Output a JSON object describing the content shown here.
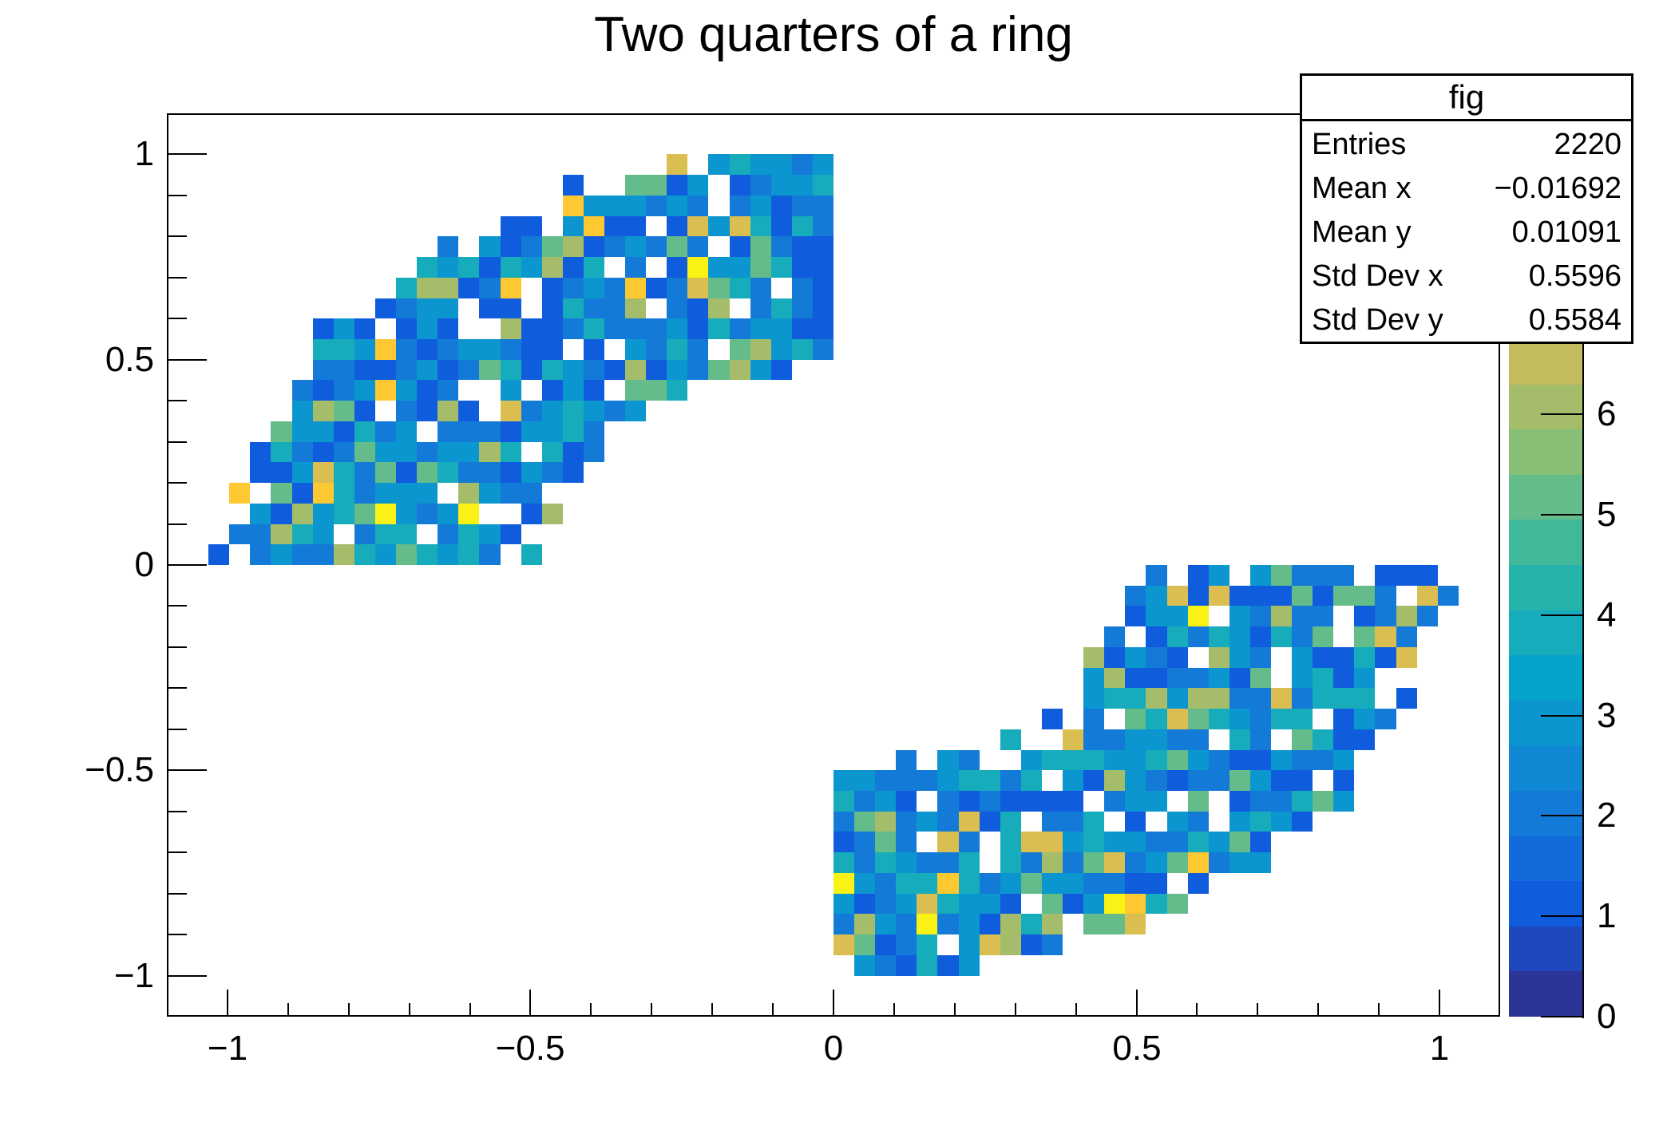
{
  "title": "Two quarters of a ring",
  "stats_box": {
    "title": "fig",
    "rows": [
      {
        "label": "Entries",
        "value": "2220"
      },
      {
        "label": "Mean x",
        "value": "−0.01692"
      },
      {
        "label": "Mean y",
        "value": "0.01091"
      },
      {
        "label": "Std Dev x",
        "value": "0.5596"
      },
      {
        "label": "Std Dev y",
        "value": "0.5584"
      }
    ]
  },
  "chart_data": {
    "type": "heatmap",
    "title": "Two quarters of a ring",
    "xlabel": "",
    "ylabel": "",
    "grid": false,
    "x_axis": {
      "range": [
        -1.1,
        1.1
      ],
      "major_ticks": [
        -1,
        -0.5,
        0,
        0.5,
        1
      ],
      "major_labels": [
        "−1",
        "−0.5",
        "0",
        "0.5",
        "1"
      ],
      "minor_step": 0.1
    },
    "y_axis": {
      "range": [
        -1.1,
        1.1
      ],
      "major_ticks": [
        -1,
        -0.5,
        0,
        0.5,
        1
      ],
      "major_labels": [
        "−1",
        "−0.5",
        "0",
        "0.5",
        "1"
      ],
      "minor_step": 0.1
    },
    "z_axis": {
      "range": [
        0,
        9
      ],
      "ticks": [
        0,
        1,
        2,
        3,
        4,
        5,
        6
      ],
      "labels": [
        "0",
        "1",
        "2",
        "3",
        "4",
        "5",
        "6"
      ]
    },
    "bins": {
      "nx": 64,
      "ny": 44
    },
    "region": {
      "shape": "two-quarter-ring",
      "r_inner": 0.5,
      "r_outer": 1.0,
      "quadrants": [
        2,
        4
      ],
      "fringe": 0.02
    },
    "fill": {
      "seed": 7,
      "empty_prob": 0.13,
      "edge_empty_prob": 0.55,
      "value_cdf": [
        [
          1,
          0.24
        ],
        [
          2,
          0.51
        ],
        [
          3,
          0.71
        ],
        [
          4,
          0.83
        ],
        [
          5,
          0.905
        ],
        [
          6,
          0.95
        ],
        [
          7,
          0.98
        ],
        [
          8,
          0.992
        ],
        [
          9,
          1.0
        ]
      ],
      "forced": [
        {
          "x": -0.225,
          "y": 0.747,
          "v": 9
        },
        {
          "x": -0.606,
          "y": 0.122,
          "v": 9
        },
        {
          "x": 0.155,
          "y": -0.873,
          "v": 9
        },
        {
          "x": -0.538,
          "y": 0.362,
          "v": 7
        },
        {
          "x": -0.21,
          "y": 0.83,
          "v": 7
        }
      ]
    },
    "palette": {
      "name": "bird",
      "n_contours": 20,
      "colors": [
        "#2d3498",
        "#1e48bb",
        "#0f5cdd",
        "#116bda",
        "#137ad7",
        "#1188d4",
        "#0c96cf",
        "#06a4ca",
        "#16acbb",
        "#26b3ac",
        "#40b99b",
        "#63bc89",
        "#87bf77",
        "#a5bd6b",
        "#c2bc5f",
        "#dabe51",
        "#ecc342",
        "#fec832",
        "#fcdc24",
        "#faf115"
      ]
    }
  }
}
